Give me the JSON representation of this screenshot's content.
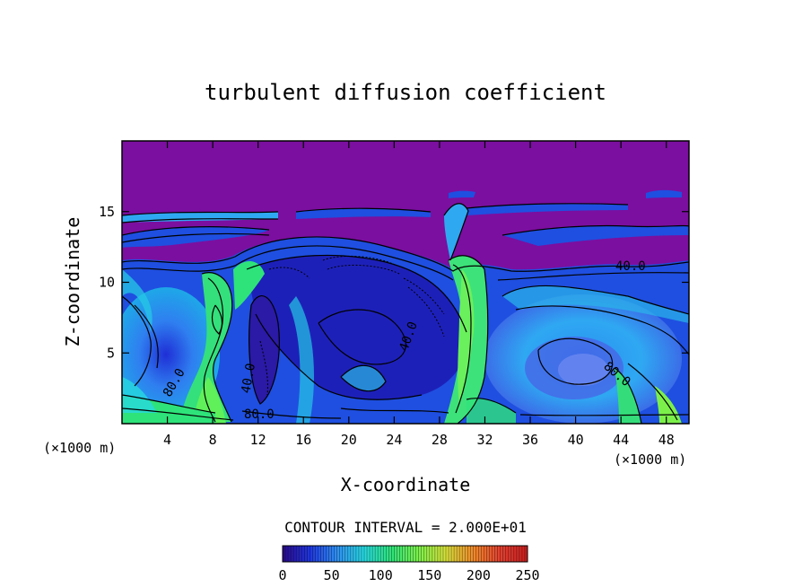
{
  "chart_data": {
    "type": "heatmap",
    "title": "turbulent diffusion coefficient",
    "xlabel": "X-coordinate",
    "ylabel": "Z-coordinate",
    "x_unit": "(×1000 m)",
    "y_unit": "(×1000 m)",
    "xlim": [
      0,
      50
    ],
    "ylim": [
      0,
      20
    ],
    "x_ticks": [
      4,
      8,
      12,
      16,
      20,
      24,
      28,
      32,
      36,
      40,
      44,
      48
    ],
    "y_ticks": [
      5,
      10,
      15
    ],
    "contour_interval": "CONTOUR INTERVAL = 2.000E+01",
    "contour_labels": [
      {
        "text": "40.0",
        "x": 43.5,
        "z": 10.9
      },
      {
        "text": "40.0",
        "x": 24.9,
        "z": 5.7
      },
      {
        "text": "40.0",
        "x": 11.1,
        "z": 3.2
      },
      {
        "text": "80.0",
        "x": 5.0,
        "z": 2.5
      },
      {
        "text": "80.0",
        "x": 43.0,
        "z": 3.6
      },
      {
        "text": "80.0",
        "x": 12.2,
        "z": 0.7
      }
    ],
    "colorbar": {
      "range": [
        0,
        250
      ],
      "ticks": [
        0,
        50,
        100,
        150,
        200,
        250
      ],
      "colors": [
        "#2a0a8a",
        "#1f35e0",
        "#2f8ff2",
        "#27d8e0",
        "#2ee37a",
        "#7cf04a",
        "#d6e03a",
        "#f08a2a",
        "#e23f2f",
        "#c81e1e"
      ]
    },
    "background_color": "#7b0fa0"
  }
}
